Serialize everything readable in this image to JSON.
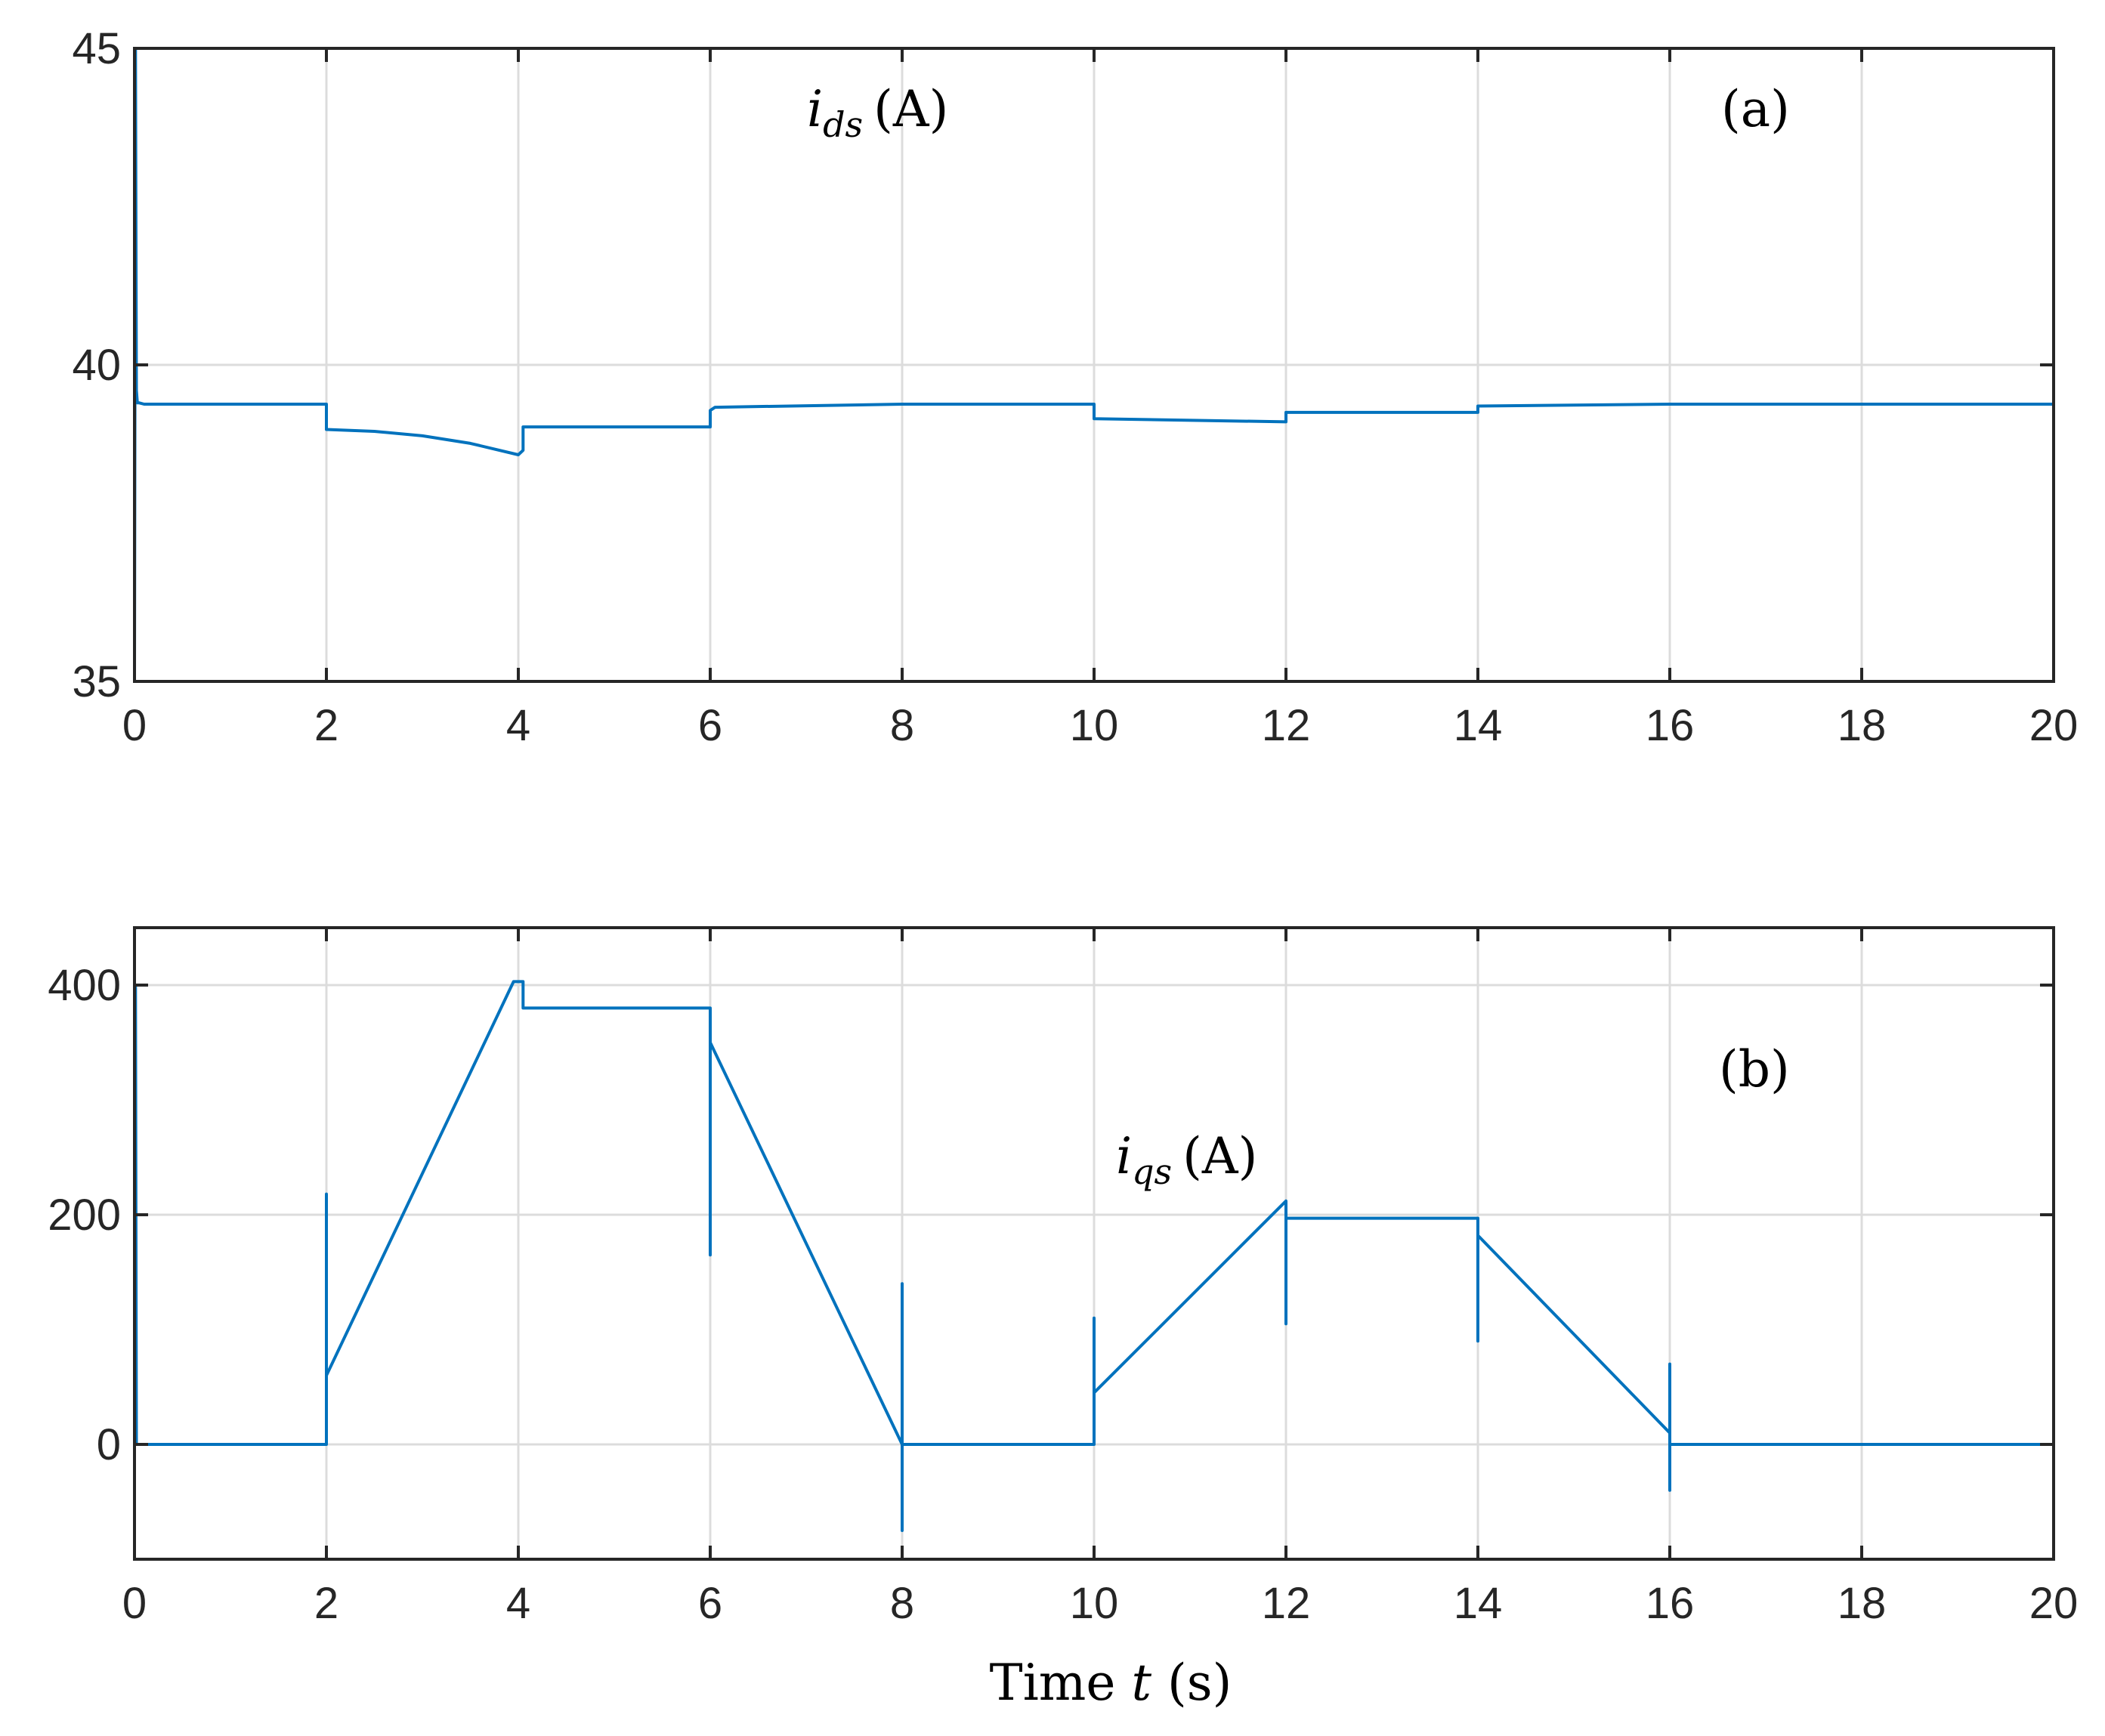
{
  "chart_data": [
    {
      "type": "line",
      "panel_label": "(a)",
      "annotation": {
        "main": "i",
        "sub": "ds",
        "unit": "(A)"
      },
      "xlabel": "",
      "ylabel": "",
      "xlim": [
        0,
        20
      ],
      "ylim": [
        35,
        45
      ],
      "xticks": [
        0,
        2,
        4,
        6,
        8,
        10,
        12,
        14,
        16,
        18,
        20
      ],
      "yticks": [
        35,
        40,
        45
      ],
      "grid": true,
      "color": "#0072BD",
      "series": [
        {
          "x": [
            0,
            0.01,
            0.02,
            0.03,
            0.05,
            0.1,
            2.0,
            2.0,
            2.5,
            3.0,
            3.5,
            4.0,
            4.05,
            4.05,
            6.0,
            6.0,
            6.05,
            8.0,
            10.0,
            10.0,
            12.0,
            12.0,
            14.0,
            14.0,
            16.0,
            20.0
          ],
          "y": [
            35,
            45,
            39.6,
            39.4,
            39.4,
            39.38,
            39.38,
            38.98,
            38.95,
            38.88,
            38.76,
            38.58,
            38.65,
            39.02,
            39.02,
            39.28,
            39.33,
            39.38,
            39.38,
            39.15,
            39.1,
            39.25,
            39.25,
            39.35,
            39.38,
            39.38
          ]
        }
      ]
    },
    {
      "type": "line",
      "panel_label": "(b)",
      "annotation": {
        "main": "i",
        "sub": "qs",
        "unit": "(A)"
      },
      "xlabel": "Time t (s)",
      "xlabel_parts": {
        "prefix": "Time ",
        "var": "t",
        "suffix": " (s)"
      },
      "ylabel": "",
      "xlim": [
        0,
        20
      ],
      "ylim": [
        -100,
        450
      ],
      "xticks": [
        0,
        2,
        4,
        6,
        8,
        10,
        12,
        14,
        16,
        18,
        20
      ],
      "yticks": [
        0,
        200,
        400
      ],
      "grid": true,
      "color": "#0072BD",
      "series": [
        {
          "x": [
            0,
            0.01,
            0.02,
            2.0,
            2.0,
            2.0,
            2.0,
            3.95,
            4.05,
            4.05,
            6.0,
            6.0,
            6.0,
            6.0,
            8.0,
            8.0,
            8.0,
            8.0,
            10.0,
            10.0,
            10.0,
            10.0,
            12.0,
            12.0,
            12.0,
            12.0,
            14.0,
            14.0,
            14.0,
            14.0,
            16.0,
            16.0,
            16.0,
            16.0,
            20.0
          ],
          "y": [
            270,
            400,
            0,
            0,
            218,
            60,
            60,
            403,
            403,
            380,
            380,
            165,
            350,
            350,
            0,
            140,
            -75,
            0,
            0,
            110,
            45,
            45,
            212,
            105,
            197,
            197,
            197,
            90,
            182,
            182,
            10,
            70,
            -40,
            0,
            0
          ]
        }
      ]
    }
  ]
}
